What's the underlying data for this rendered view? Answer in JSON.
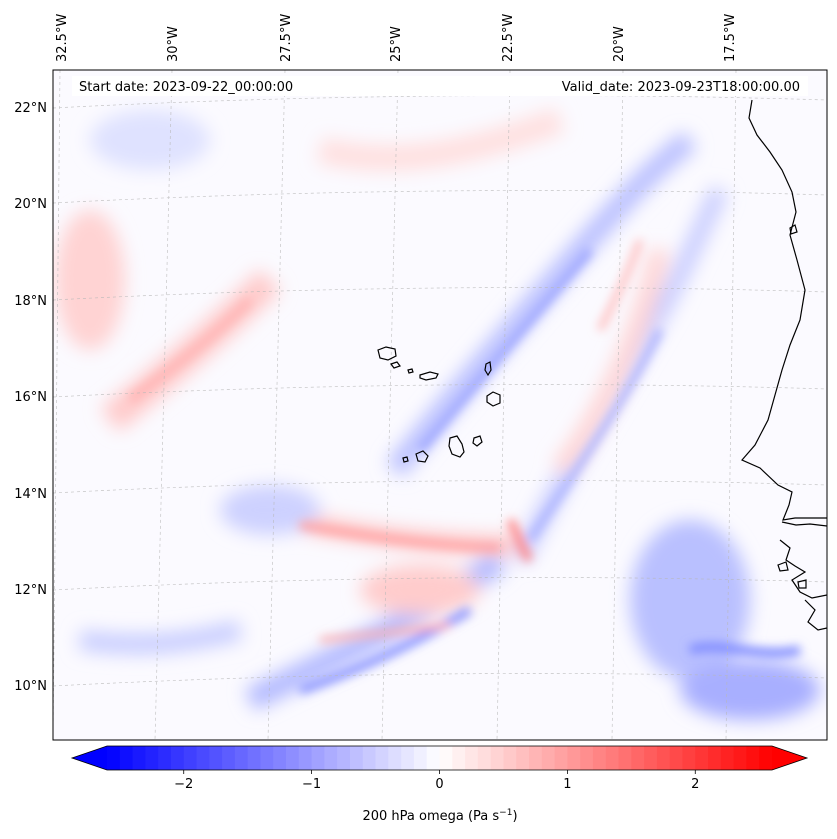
{
  "header": {
    "start_date": "Start date: 2023-09-22_00:00:00",
    "valid_date": "Valid_date: 2023-09-23T18:00:00.00"
  },
  "map": {
    "projection": "lambert-conformal",
    "lon_range": [
      -33.0,
      -15.8
    ],
    "lat_range": [
      8.8,
      22.7
    ],
    "gridlines": true,
    "lon_labels": [
      "32.5°W",
      "30°W",
      "27.5°W",
      "25°W",
      "22.5°W",
      "20°W",
      "17.5°W"
    ],
    "lat_labels": [
      "22°N",
      "20°N",
      "18°N",
      "16°N",
      "14°N",
      "12°N",
      "10°N"
    ],
    "field": "200 hPa vertical velocity (omega), blue = ascent, red = descent",
    "land_features": [
      "Cape Verde islands",
      "West African coast (Senegal, Gambia, Guinea-Bissau)"
    ]
  },
  "colorbar": {
    "title_text": "200 hPa omega (Pa s",
    "title_exp": "−1",
    "title_close": ")",
    "min": -2.6,
    "max": 2.6,
    "ticks": [
      {
        "value": -2,
        "label": "−2"
      },
      {
        "value": -1,
        "label": "−1"
      },
      {
        "value": 0,
        "label": "0"
      },
      {
        "value": 1,
        "label": "1"
      },
      {
        "value": 2,
        "label": "2"
      }
    ],
    "cmap": "bwr",
    "low_color": "#0000ff",
    "mid_color": "#ffffff",
    "high_color": "#ff0000",
    "extend": "both"
  }
}
